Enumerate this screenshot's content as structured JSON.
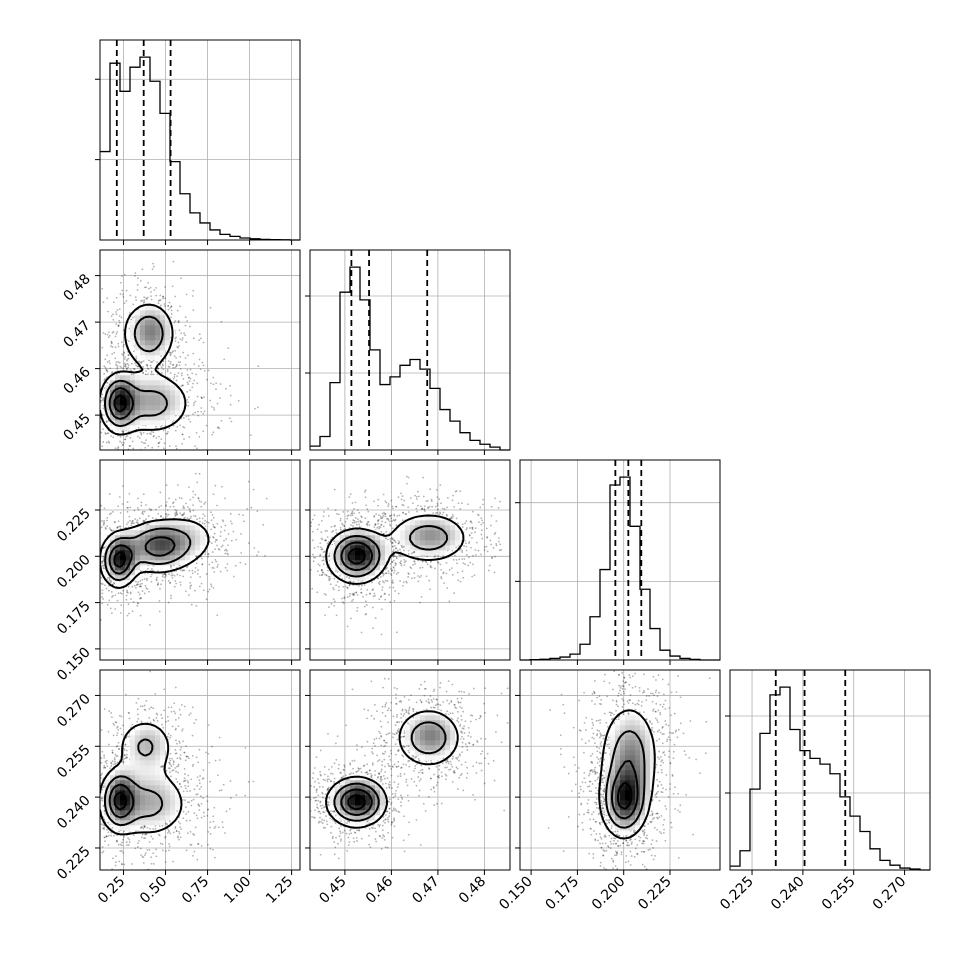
{
  "chart_data": {
    "type": "corner",
    "grid": true,
    "parameters": [
      {
        "range": [
          0.11,
          1.3
        ],
        "ticks": [
          "0.25",
          "0.50",
          "0.75",
          "1.00",
          "1.25"
        ],
        "tick_values": [
          0.25,
          0.5,
          0.75,
          1.0,
          1.25
        ]
      },
      {
        "range": [
          0.4425,
          0.4855
        ],
        "ticks": [
          "0.45",
          "0.46",
          "0.47",
          "0.48"
        ],
        "tick_values": [
          0.45,
          0.46,
          0.47,
          0.48
        ]
      },
      {
        "range": [
          0.144,
          0.252
        ],
        "ticks": [
          "0.150",
          "0.175",
          "0.200",
          "0.225"
        ],
        "tick_values": [
          0.15,
          0.175,
          0.2,
          0.225
        ]
      },
      {
        "range": [
          0.2185,
          0.2775
        ],
        "ticks": [
          "0.225",
          "0.240",
          "0.255",
          "0.270"
        ],
        "tick_values": [
          0.225,
          0.24,
          0.255,
          0.27
        ]
      }
    ],
    "histograms": [
      {
        "param": 0,
        "bins": [
          0.11,
          0.1695,
          0.229,
          0.2885,
          0.348,
          0.4075,
          0.467,
          0.5265,
          0.586,
          0.6455,
          0.705,
          0.7645,
          0.824,
          0.8835,
          0.943,
          1.0025,
          1.062,
          1.1215,
          1.181,
          1.2405,
          1.3
        ],
        "counts": [
          0.44,
          0.88,
          0.74,
          0.86,
          0.91,
          0.79,
          0.63,
          0.39,
          0.23,
          0.135,
          0.085,
          0.05,
          0.028,
          0.018,
          0.01,
          0.006,
          0.003,
          0.002,
          0.001,
          0.0
        ],
        "quantiles": [
          0.21,
          0.37,
          0.53
        ]
      },
      {
        "param": 1,
        "bins": [
          0.4425,
          0.44465,
          0.4468,
          0.44895,
          0.4511,
          0.45325,
          0.4554,
          0.45755,
          0.4597,
          0.46185,
          0.464,
          0.46615,
          0.4683,
          0.47045,
          0.4726,
          0.47475,
          0.4769,
          0.47905,
          0.4812,
          0.48335,
          0.4855
        ],
        "counts": [
          0.02,
          0.07,
          0.35,
          0.82,
          0.95,
          0.78,
          0.52,
          0.34,
          0.38,
          0.44,
          0.47,
          0.42,
          0.32,
          0.21,
          0.15,
          0.09,
          0.05,
          0.03,
          0.015,
          0.0
        ],
        "quantiles": [
          0.4514,
          0.4552,
          0.4677
        ]
      },
      {
        "param": 2,
        "bins": [
          0.144,
          0.1494,
          0.1548,
          0.1602,
          0.1656,
          0.171,
          0.1764,
          0.1818,
          0.1872,
          0.1926,
          0.198,
          0.2034,
          0.2088,
          0.2142,
          0.2196,
          0.225,
          0.2304,
          0.2358,
          0.2412,
          0.2466,
          0.252
        ],
        "counts": [
          0.0,
          0.002,
          0.004,
          0.008,
          0.015,
          0.03,
          0.08,
          0.22,
          0.46,
          0.89,
          0.93,
          0.68,
          0.36,
          0.16,
          0.05,
          0.02,
          0.008,
          0.003,
          0.0,
          0.0
        ],
        "quantiles": [
          0.1955,
          0.2025,
          0.2095
        ]
      },
      {
        "param": 3,
        "bins": [
          0.2185,
          0.22145,
          0.2244,
          0.22735,
          0.2303,
          0.23325,
          0.2362,
          0.23915,
          0.2421,
          0.24505,
          0.248,
          0.25095,
          0.2539,
          0.25685,
          0.2598,
          0.26275,
          0.2657,
          0.26865,
          0.2716,
          0.27455,
          0.2775
        ],
        "counts": [
          0.02,
          0.1,
          0.42,
          0.71,
          0.91,
          0.95,
          0.73,
          0.62,
          0.58,
          0.55,
          0.5,
          0.38,
          0.28,
          0.2,
          0.11,
          0.05,
          0.025,
          0.01,
          0.005,
          0.0
        ],
        "quantiles": [
          0.232,
          0.2405,
          0.2525
        ]
      }
    ],
    "density_2d": [
      {
        "x": 0,
        "y": 1,
        "modes": [
          {
            "cx": 0.22,
            "cy": 0.4525,
            "sx": 0.06,
            "sy": 0.0035,
            "w": 1.0
          },
          {
            "cx": 0.42,
            "cy": 0.4525,
            "sx": 0.14,
            "sy": 0.004,
            "w": 0.6
          },
          {
            "cx": 0.4,
            "cy": 0.4675,
            "sx": 0.09,
            "sy": 0.004,
            "w": 0.75
          }
        ]
      },
      {
        "x": 0,
        "y": 2,
        "modes": [
          {
            "cx": 0.22,
            "cy": 0.1975,
            "sx": 0.06,
            "sy": 0.008,
            "w": 1.0
          },
          {
            "cx": 0.45,
            "cy": 0.205,
            "sx": 0.12,
            "sy": 0.008,
            "w": 0.8
          },
          {
            "cx": 0.65,
            "cy": 0.21,
            "sx": 0.12,
            "sy": 0.009,
            "w": 0.25
          }
        ]
      },
      {
        "x": 1,
        "y": 2,
        "modes": [
          {
            "cx": 0.4525,
            "cy": 0.2,
            "sx": 0.0035,
            "sy": 0.008,
            "w": 1.0
          },
          {
            "cx": 0.468,
            "cy": 0.21,
            "sx": 0.005,
            "sy": 0.008,
            "w": 0.55
          }
        ]
      },
      {
        "x": 0,
        "y": 3,
        "modes": [
          {
            "cx": 0.22,
            "cy": 0.239,
            "sx": 0.06,
            "sy": 0.005,
            "w": 1.0
          },
          {
            "cx": 0.4,
            "cy": 0.238,
            "sx": 0.14,
            "sy": 0.006,
            "w": 0.6
          },
          {
            "cx": 0.38,
            "cy": 0.255,
            "sx": 0.1,
            "sy": 0.005,
            "w": 0.55
          }
        ]
      },
      {
        "x": 1,
        "y": 3,
        "modes": [
          {
            "cx": 0.4525,
            "cy": 0.2385,
            "sx": 0.0035,
            "sy": 0.004,
            "w": 1.0
          },
          {
            "cx": 0.468,
            "cy": 0.2575,
            "sx": 0.004,
            "sy": 0.005,
            "w": 0.6
          }
        ]
      },
      {
        "x": 2,
        "y": 3,
        "modes": [
          {
            "cx": 0.2,
            "cy": 0.2385,
            "sx": 0.007,
            "sy": 0.006,
            "w": 1.0
          },
          {
            "cx": 0.203,
            "cy": 0.252,
            "sx": 0.009,
            "sy": 0.009,
            "w": 0.7
          }
        ]
      }
    ]
  }
}
